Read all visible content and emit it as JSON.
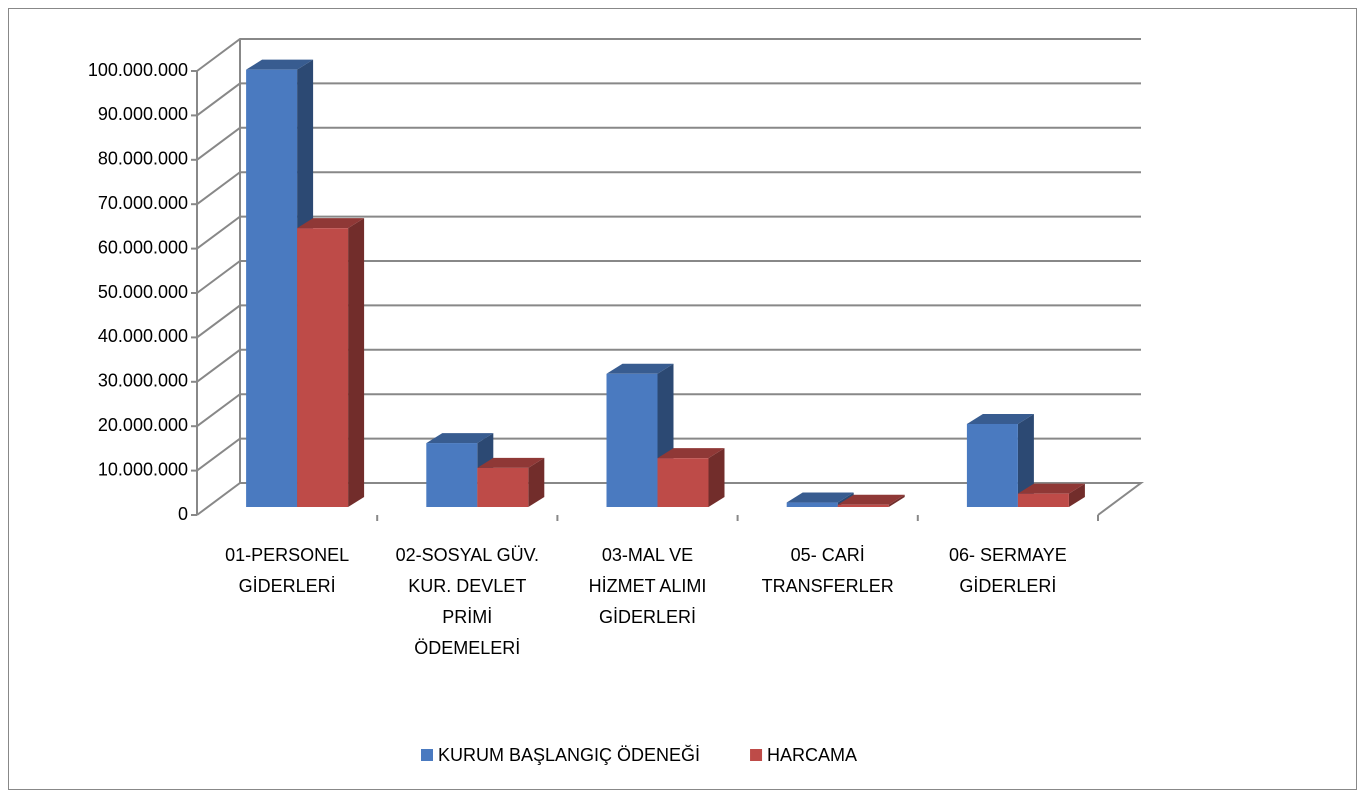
{
  "chart_data": {
    "type": "bar3d",
    "categories": [
      "01-PERSONEL GİDERLERİ",
      "02-SOSYAL GÜV. KUR. DEVLET PRİMİ ÖDEMELERİ",
      "03-MAL VE HİZMET ALIMI GİDERLERİ",
      "05- CARİ TRANSFERLER",
      "06- SERMAYE GİDERLERİ"
    ],
    "series": [
      {
        "name": "KURUM BAŞLANGIÇ ÖDENEĞİ",
        "color": "#4a7ac0",
        "values": [
          98500000,
          14400000,
          30000000,
          1000000,
          18700000
        ]
      },
      {
        "name": "HARCAMA",
        "color": "#be4b48",
        "values": [
          62800000,
          8800000,
          11000000,
          500000,
          3000000
        ]
      }
    ],
    "ylim": [
      0,
      100000000
    ],
    "yticks": [
      0,
      {
        "value": 10000000,
        "label": "10.000.000"
      },
      {
        "value": 20000000,
        "label": "20.000.000"
      },
      {
        "value": 30000000,
        "label": "30.000.000"
      },
      {
        "value": 40000000,
        "label": "40.000.000"
      },
      {
        "value": 50000000,
        "label": "50.000.000"
      },
      {
        "value": 60000000,
        "label": "60.000.000"
      },
      {
        "value": 70000000,
        "label": "70.000.000"
      },
      {
        "value": 80000000,
        "label": "80.000.000"
      },
      {
        "value": 90000000,
        "label": "90.000.000"
      },
      {
        "value": 100000000,
        "label": "100.000.000"
      }
    ],
    "grid": true,
    "legend": "bottom"
  }
}
